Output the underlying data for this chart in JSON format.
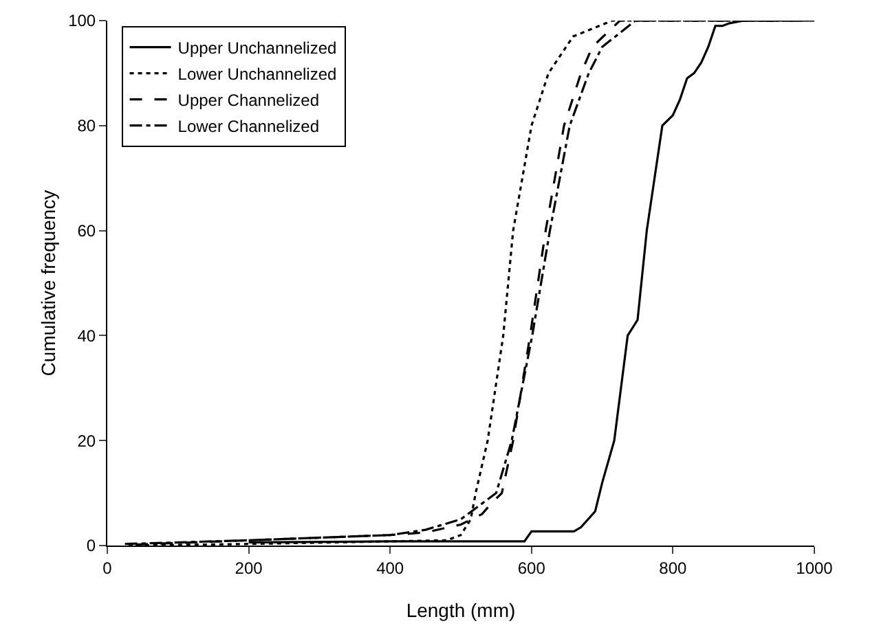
{
  "chart_data": {
    "type": "line",
    "xlabel": "Length (mm)",
    "ylabel": "Cumulative frequency",
    "xlim": [
      0,
      1000
    ],
    "xticks": [
      0,
      200,
      400,
      600,
      800,
      1000
    ],
    "ylim": [
      0,
      100
    ],
    "yticks": [
      0,
      20,
      40,
      60,
      80,
      100
    ],
    "grid": false,
    "legend": "top left",
    "marker": "none",
    "series": [
      {
        "name": "Upper Unchannelized",
        "color": "#000000",
        "line_style": "solid",
        "x": [
          200,
          400,
          590,
          600,
          660,
          670,
          680,
          690,
          700,
          717,
          736,
          750,
          763,
          785,
          800,
          810,
          820,
          830,
          840,
          850,
          860,
          870,
          880,
          900,
          1000
        ],
        "values": [
          0.6,
          0.8,
          0.8,
          2.7,
          2.7,
          3.5,
          5,
          6.5,
          12,
          20,
          40,
          43,
          60,
          80,
          82,
          85,
          89,
          90,
          92,
          95,
          99,
          99,
          99.5,
          100,
          100
        ]
      },
      {
        "name": "Lower Unchannelized",
        "color": "#000000",
        "line_style": "dotted",
        "x": [
          30,
          200,
          400,
          480,
          500,
          514,
          521,
          538,
          560,
          574,
          600,
          624,
          659,
          714,
          950
        ],
        "values": [
          0,
          0.3,
          0.8,
          1,
          2,
          5,
          10,
          20,
          40,
          60,
          80,
          90,
          97,
          100,
          100
        ]
      },
      {
        "name": "Upper Channelized",
        "color": "#000000",
        "line_style": "dashed",
        "x": [
          40,
          200,
          400,
          450,
          500,
          530,
          543,
          558,
          574,
          598,
          620,
          646,
          670,
          686,
          725,
          970
        ],
        "values": [
          0.2,
          1,
          2,
          2.5,
          4,
          6,
          8,
          10,
          20,
          40,
          60,
          80,
          90,
          95,
          100,
          100
        ]
      },
      {
        "name": "Lower Channelized",
        "color": "#000000",
        "line_style": "dashdot",
        "x": [
          25,
          200,
          400,
          450,
          500,
          530,
          550,
          572,
          601,
          626,
          654,
          681,
          700,
          747,
          990
        ],
        "values": [
          0.3,
          1,
          2,
          3,
          5,
          8,
          10,
          20,
          40,
          60,
          80,
          90,
          95,
          100,
          100
        ]
      }
    ]
  }
}
